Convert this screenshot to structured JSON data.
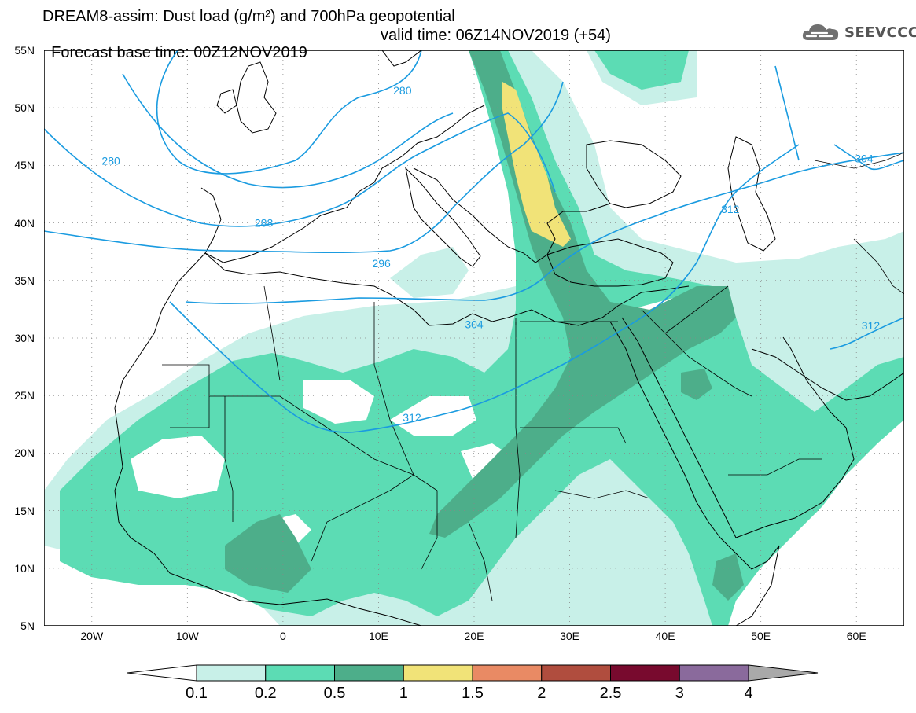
{
  "header": {
    "title_line1": "DREAM8-assim: Dust load (g/m²) and 700hPa geopotential",
    "title_line2_base": "Forecast base time: 00Z12NOV2019",
    "title_line2_valid": "valid time: 06Z14NOV2019 (+54)"
  },
  "logo": {
    "text": "SEEVCCC",
    "icon": "cloud-icon"
  },
  "map": {
    "lon_range": [
      -25,
      65
    ],
    "lat_range": [
      5,
      55
    ],
    "lat_labels": [
      "55N",
      "50N",
      "45N",
      "40N",
      "35N",
      "30N",
      "25N",
      "20N",
      "15N",
      "10N",
      "5N"
    ],
    "lon_labels": [
      "20W",
      "10W",
      "0",
      "10E",
      "20E",
      "30E",
      "40E",
      "50E",
      "60E"
    ],
    "contour_color": "#1a9be0",
    "contour_labels": [
      {
        "text": "280",
        "lon": 12.5,
        "lat": 51.5
      },
      {
        "text": "280",
        "lon": -18,
        "lat": 45.4
      },
      {
        "text": "288",
        "lon": -2,
        "lat": 40
      },
      {
        "text": "296",
        "lon": 10.3,
        "lat": 36.5
      },
      {
        "text": "304",
        "lon": 20,
        "lat": 31.2
      },
      {
        "text": "304",
        "lon": 60.8,
        "lat": 45.6
      },
      {
        "text": "312",
        "lon": 13.5,
        "lat": 23.1
      },
      {
        "text": "312",
        "lon": 46.8,
        "lat": 41.2
      },
      {
        "text": "312",
        "lon": 61.5,
        "lat": 31.1
      }
    ]
  },
  "legend": {
    "boundaries": [
      "0.1",
      "0.2",
      "0.5",
      "1",
      "1.5",
      "2",
      "2.5",
      "3",
      "4"
    ],
    "colors": [
      "#c8f0e8",
      "#5cdcb4",
      "#4dae8a",
      "#f1e378",
      "#e98a64",
      "#b04d3e",
      "#780a2e",
      "#8a6a9c"
    ],
    "min_arrow_color": "#ffffff",
    "max_arrow_color": "#a9a9a9"
  }
}
